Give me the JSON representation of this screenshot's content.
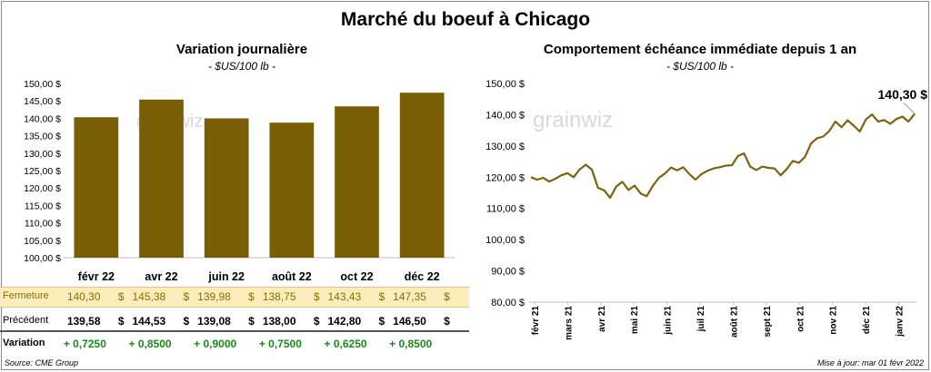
{
  "title": "Marché du boeuf à Chicago",
  "left_panel": {
    "title": "Variation  journalière",
    "unit": "- $US/100 lb -"
  },
  "right_panel": {
    "title": "Comportement  échéance immédiate depuis 1 an",
    "unit": "- $US/100 lb -",
    "last_label": "140,30 $"
  },
  "watermark": "grainwiz",
  "table": {
    "rows": {
      "close_label": "Fermeture",
      "prev_label": "Précédent",
      "var_label": "Variation"
    },
    "close": [
      "140,30",
      "145,38",
      "139,98",
      "138,75",
      "143,43",
      "147,35"
    ],
    "prev": [
      "139,58",
      "144,53",
      "139,08",
      "138,00",
      "142,80",
      "146,50"
    ],
    "var": [
      "+ 0,7250",
      "+ 0,8500",
      "+ 0,9000",
      "+ 0,7500",
      "+ 0,6250",
      "+ 0,8500"
    ],
    "currency": "$"
  },
  "footer": {
    "source": "Source: CME Group",
    "updated": "Mise à jour: mar 01 févr 2022"
  },
  "colors": {
    "bar": "#7a5e05",
    "line": "#7a6410",
    "close_band": "#fbeebc",
    "close_text": "#8a6d00",
    "positive": "#1a8a1a"
  },
  "chart_data": [
    {
      "type": "bar",
      "title": "Variation  journalière",
      "ylabel": "- $US/100 lb -",
      "categories": [
        "févr 22",
        "avr 22",
        "juin 22",
        "août 22",
        "oct 22",
        "déc 22"
      ],
      "values": [
        140.3,
        145.38,
        139.98,
        138.75,
        143.43,
        147.35
      ],
      "ylim": [
        100,
        150
      ],
      "yticks": [
        "100,00 $",
        "105,00 $",
        "110,00 $",
        "115,00 $",
        "120,00 $",
        "125,00 $",
        "130,00 $",
        "135,00 $",
        "140,00 $",
        "145,00 $",
        "150,00 $"
      ],
      "grid": false
    },
    {
      "type": "line",
      "title": "Comportement  échéance immédiate depuis 1 an",
      "ylabel": "- $US/100 lb -",
      "ylim": [
        80,
        150
      ],
      "yticks": [
        "80,00 $",
        "90,00 $",
        "100,00 $",
        "110,00 $",
        "120,00 $",
        "130,00 $",
        "140,00 $",
        "150,00 $"
      ],
      "xticks": [
        "févr 21",
        "mars 21",
        "avr 21",
        "mai 21",
        "juin 21",
        "juil 21",
        "août 21",
        "sept 21",
        "oct 21",
        "nov 21",
        "déc 21",
        "janv 22"
      ],
      "x": [
        "févr 21",
        "févr 21",
        "févr 21",
        "févr 21",
        "févr 21",
        "mars 21",
        "mars 21",
        "mars 21",
        "mars 21",
        "mars 21",
        "mars 21",
        "avr 21",
        "avr 21",
        "avr 21",
        "avr 21",
        "avr 21",
        "avr 21",
        "mai 21",
        "mai 21",
        "mai 21",
        "mai 21",
        "mai 21",
        "mai 21",
        "juin 21",
        "juin 21",
        "juin 21",
        "juin 21",
        "juin 21",
        "juil 21",
        "juil 21",
        "juil 21",
        "juil 21",
        "juil 21",
        "août 21",
        "août 21",
        "août 21",
        "août 21",
        "août 21",
        "août 21",
        "sept 21",
        "sept 21",
        "sept 21",
        "sept 21",
        "sept 21",
        "oct 21",
        "oct 21",
        "oct 21",
        "oct 21",
        "oct 21",
        "nov 21",
        "nov 21",
        "nov 21",
        "nov 21",
        "nov 21",
        "déc 21",
        "déc 21",
        "déc 21",
        "déc 21",
        "déc 21",
        "janv 22",
        "janv 22",
        "janv 22",
        "janv 22",
        "janv 22"
      ],
      "series": [
        {
          "values": [
            120.0,
            119.2,
            119.8,
            118.6,
            119.5,
            120.6,
            121.3,
            120.0,
            122.5,
            124.0,
            122.4,
            116.6,
            115.8,
            113.4,
            117.0,
            118.5,
            115.9,
            117.3,
            114.8,
            113.9,
            117.2,
            119.8,
            121.2,
            123.1,
            122.2,
            123.2,
            121.0,
            119.2,
            121.0,
            122.1,
            122.8,
            123.2,
            123.7,
            123.8,
            126.8,
            127.6,
            123.4,
            122.3,
            123.4,
            123.0,
            122.8,
            120.6,
            122.6,
            125.2,
            124.6,
            126.5,
            130.8,
            132.5,
            133.0,
            134.8,
            137.8,
            136.0,
            138.2,
            136.5,
            134.6,
            138.5,
            140.1,
            137.8,
            138.3,
            137.1,
            138.6,
            139.4,
            137.8,
            140.3
          ]
        }
      ],
      "annotations": [
        "140,30 $"
      ],
      "grid": false
    }
  ]
}
